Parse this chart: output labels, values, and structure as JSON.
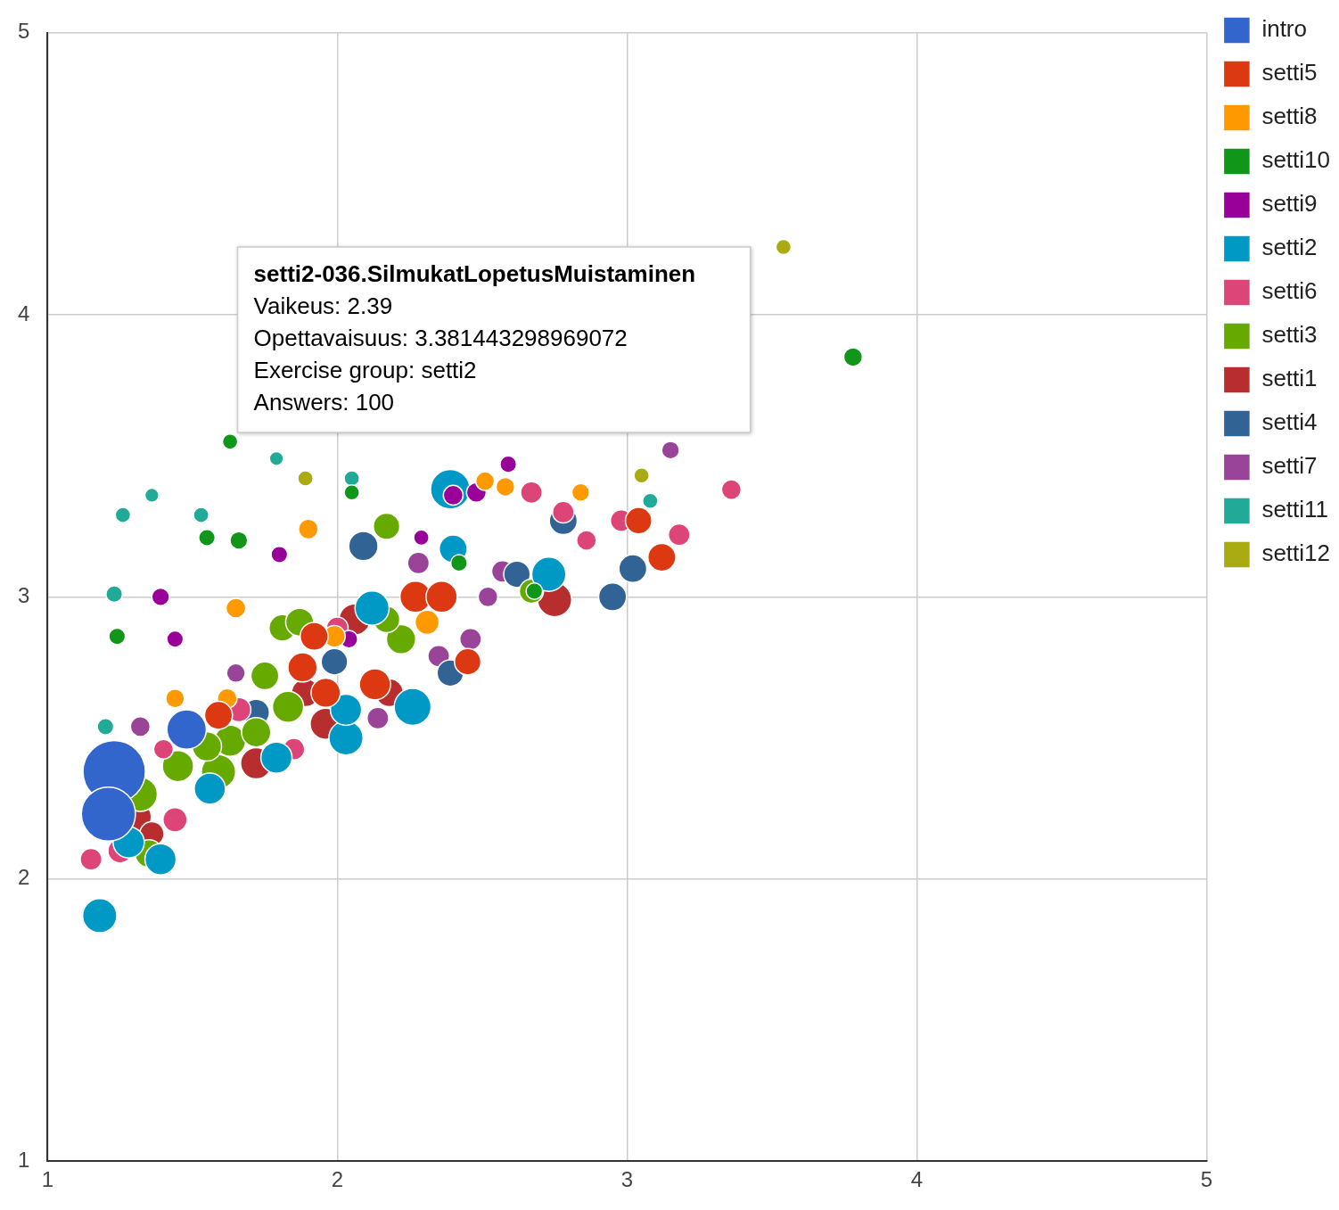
{
  "chart_data": {
    "type": "bubble",
    "xlim": [
      1,
      5
    ],
    "ylim": [
      1,
      5
    ],
    "xticks": [
      1,
      2,
      3,
      4,
      5
    ],
    "yticks": [
      1,
      2,
      3,
      4,
      5
    ],
    "grid": true,
    "legend": "right",
    "annotations": [
      "setti2-036.SilmukatLopetusMuistaminen",
      "Vaikeus: 2.39",
      "Opettavaisuus: 3.381443298969072",
      "Exercise group: setti2",
      "Answers: 100"
    ],
    "series": [
      {
        "name": "intro",
        "color": "#3366cc",
        "x": [
          1.23,
          1.21,
          1.48
        ],
        "values": [
          2.38,
          2.23,
          2.53
        ],
        "sizes": [
          1,
          0.75,
          0.4
        ]
      },
      {
        "name": "setti5",
        "color": "#dc3912",
        "x": [
          2.27,
          2.36,
          3.12,
          3.04,
          2.45,
          2.13,
          1.88,
          1.96,
          1.59,
          1.92
        ],
        "values": [
          3.0,
          3.0,
          3.14,
          3.27,
          2.77,
          2.69,
          2.75,
          2.66,
          2.58,
          2.86
        ],
        "sizes": [
          0.25,
          0.25,
          0.2,
          0.18,
          0.18,
          0.25,
          0.22,
          0.22,
          0.2,
          0.2
        ]
      },
      {
        "name": "setti8",
        "color": "#ff9900",
        "x": [
          1.65,
          1.9,
          1.44,
          2.51,
          2.58,
          2.84,
          2.31,
          1.99,
          1.62
        ],
        "values": [
          2.96,
          3.24,
          2.64,
          3.41,
          3.39,
          3.37,
          2.91,
          2.86,
          2.64
        ],
        "sizes": [
          0.1,
          0.1,
          0.09,
          0.09,
          0.09,
          0.08,
          0.15,
          0.12,
          0.1
        ]
      },
      {
        "name": "setti10",
        "color": "#109618",
        "x": [
          3.78,
          1.63,
          1.24,
          1.55,
          1.66,
          2.05,
          2.42,
          2.68
        ],
        "values": [
          3.85,
          3.55,
          2.86,
          3.21,
          3.2,
          3.37,
          3.12,
          3.02
        ],
        "sizes": [
          0.09,
          0.06,
          0.07,
          0.07,
          0.08,
          0.06,
          0.07,
          0.07
        ]
      },
      {
        "name": "setti9",
        "color": "#990099",
        "x": [
          1.39,
          1.44,
          1.8,
          2.59,
          2.29,
          2.48,
          2.4,
          2.04
        ],
        "values": [
          3.0,
          2.85,
          3.15,
          3.47,
          3.21,
          3.37,
          3.36,
          2.85
        ],
        "sizes": [
          0.08,
          0.07,
          0.07,
          0.07,
          0.06,
          0.1,
          0.1,
          0.08
        ]
      },
      {
        "name": "setti2",
        "color": "#0099c6",
        "x": [
          1.18,
          1.39,
          2.03,
          2.26,
          2.73,
          2.4,
          2.12,
          1.56,
          1.79,
          2.03,
          1.28,
          2.39
        ],
        "values": [
          1.87,
          2.07,
          2.5,
          2.61,
          3.08,
          3.17,
          2.96,
          2.32,
          2.43,
          2.6,
          2.13,
          3.381443298969072
        ],
        "sizes": [
          0.3,
          0.25,
          0.3,
          0.35,
          0.3,
          0.2,
          0.3,
          0.25,
          0.25,
          0.25,
          0.25,
          0.4
        ]
      },
      {
        "name": "setti6",
        "color": "#dd4477",
        "x": [
          1.15,
          1.25,
          1.4,
          1.44,
          1.85,
          2.67,
          2.78,
          2.86,
          2.98,
          3.18,
          3.36,
          2.0,
          1.66
        ],
        "values": [
          2.07,
          2.1,
          2.46,
          2.21,
          2.46,
          3.37,
          3.3,
          3.2,
          3.27,
          3.22,
          3.38,
          2.89,
          2.6
        ],
        "sizes": [
          0.12,
          0.15,
          0.1,
          0.15,
          0.12,
          0.12,
          0.12,
          0.1,
          0.12,
          0.12,
          0.1,
          0.12,
          0.15
        ]
      },
      {
        "name": "setti3",
        "color": "#66aa00",
        "x": [
          2.17,
          1.32,
          1.35,
          1.45,
          1.59,
          1.63,
          1.75,
          1.81,
          1.87,
          2.22,
          2.17,
          1.83,
          1.72,
          2.67,
          1.55
        ],
        "values": [
          3.25,
          2.3,
          2.09,
          2.4,
          2.38,
          2.49,
          2.72,
          2.89,
          2.91,
          2.85,
          2.92,
          2.61,
          2.52,
          3.02,
          2.47
        ],
        "sizes": [
          0.18,
          0.3,
          0.2,
          0.25,
          0.3,
          0.25,
          0.2,
          0.18,
          0.2,
          0.22,
          0.18,
          0.25,
          0.22,
          0.15,
          0.22
        ]
      },
      {
        "name": "setti1",
        "color": "#b82e2e",
        "x": [
          2.75,
          1.96,
          1.72,
          1.31,
          2.06,
          2.18,
          1.89,
          1.36
        ],
        "values": [
          2.99,
          2.55,
          2.41,
          2.22,
          2.92,
          2.66,
          2.66,
          2.16
        ],
        "sizes": [
          0.3,
          0.25,
          0.25,
          0.2,
          0.25,
          0.2,
          0.2,
          0.15
        ]
      },
      {
        "name": "setti4",
        "color": "#316395",
        "x": [
          2.95,
          3.02,
          2.78,
          2.09,
          2.39,
          1.72,
          2.62,
          1.99
        ],
        "values": [
          3.0,
          3.1,
          3.27,
          3.18,
          2.73,
          2.59,
          3.08,
          2.77
        ],
        "sizes": [
          0.2,
          0.2,
          0.2,
          0.22,
          0.18,
          0.18,
          0.18,
          0.18
        ]
      },
      {
        "name": "setti7",
        "color": "#994499",
        "x": [
          1.32,
          1.65,
          2.35,
          2.46,
          2.52,
          2.57,
          2.14,
          2.28,
          3.15
        ],
        "values": [
          2.54,
          2.73,
          2.79,
          2.85,
          3.0,
          3.09,
          2.57,
          3.12,
          3.52
        ],
        "sizes": [
          0.1,
          0.09,
          0.12,
          0.12,
          0.1,
          0.12,
          0.12,
          0.12,
          0.08
        ]
      },
      {
        "name": "setti11",
        "color": "#22aa99",
        "x": [
          1.26,
          1.36,
          1.53,
          1.23,
          1.2,
          1.79,
          2.05,
          3.08
        ],
        "values": [
          3.29,
          3.36,
          3.29,
          3.01,
          2.54,
          3.49,
          3.42,
          3.34
        ],
        "sizes": [
          0.06,
          0.05,
          0.06,
          0.07,
          0.07,
          0.05,
          0.06,
          0.06
        ]
      },
      {
        "name": "setti12",
        "color": "#aaaa11",
        "x": [
          3.54,
          1.89,
          3.05
        ],
        "values": [
          4.24,
          3.42,
          3.43
        ],
        "sizes": [
          0.06,
          0.06,
          0.06
        ]
      }
    ]
  }
}
